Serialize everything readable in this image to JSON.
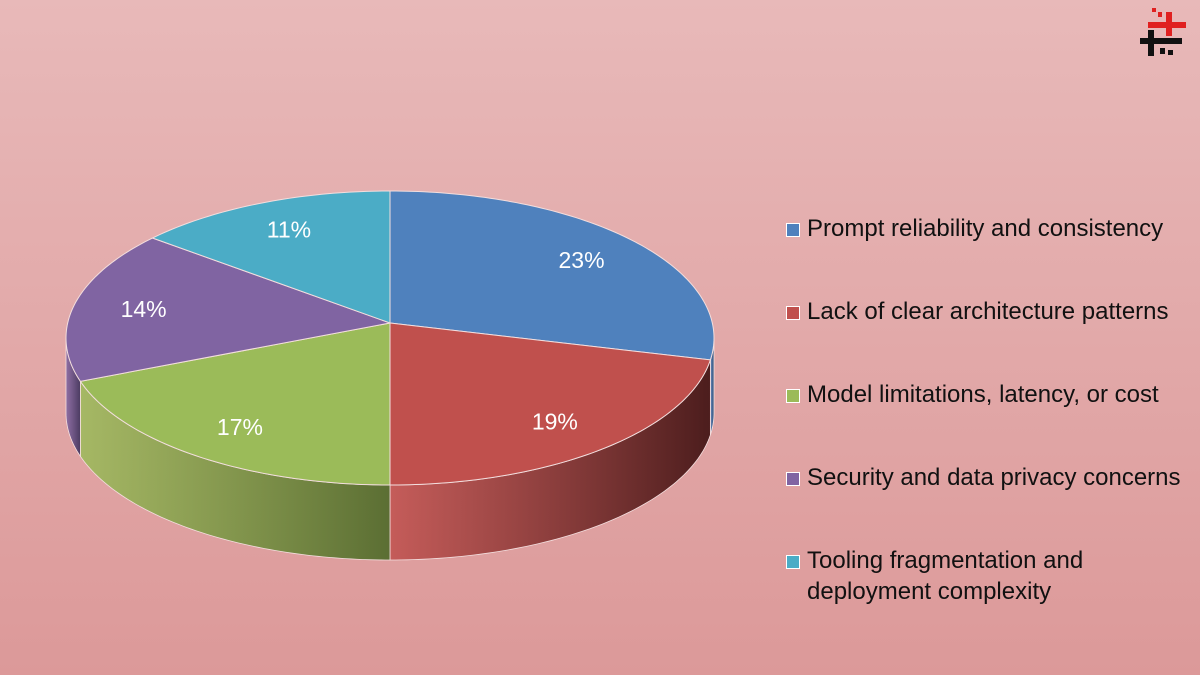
{
  "chart_data": {
    "type": "pie",
    "style": "3d",
    "categories": [
      "Prompt reliability and consistency",
      "Lack of clear architecture patterns",
      "Model limitations, latency, or cost",
      "Security and data privacy concerns",
      "Tooling fragmentation and deployment complexity"
    ],
    "values": [
      23,
      19,
      17,
      14,
      11
    ],
    "labels": [
      "23%",
      "19%",
      "17%",
      "14%",
      "11%"
    ],
    "colors": [
      "#4f81bd",
      "#c0504d",
      "#9bbb59",
      "#8064a2",
      "#4bacc6"
    ],
    "side_colors": [
      "#2e4d72",
      "#4c1d1d",
      "#5b6e33",
      "#4a3a60",
      "#2c6676"
    ],
    "legend_position": "right"
  },
  "logo": {
    "text": "logo"
  }
}
